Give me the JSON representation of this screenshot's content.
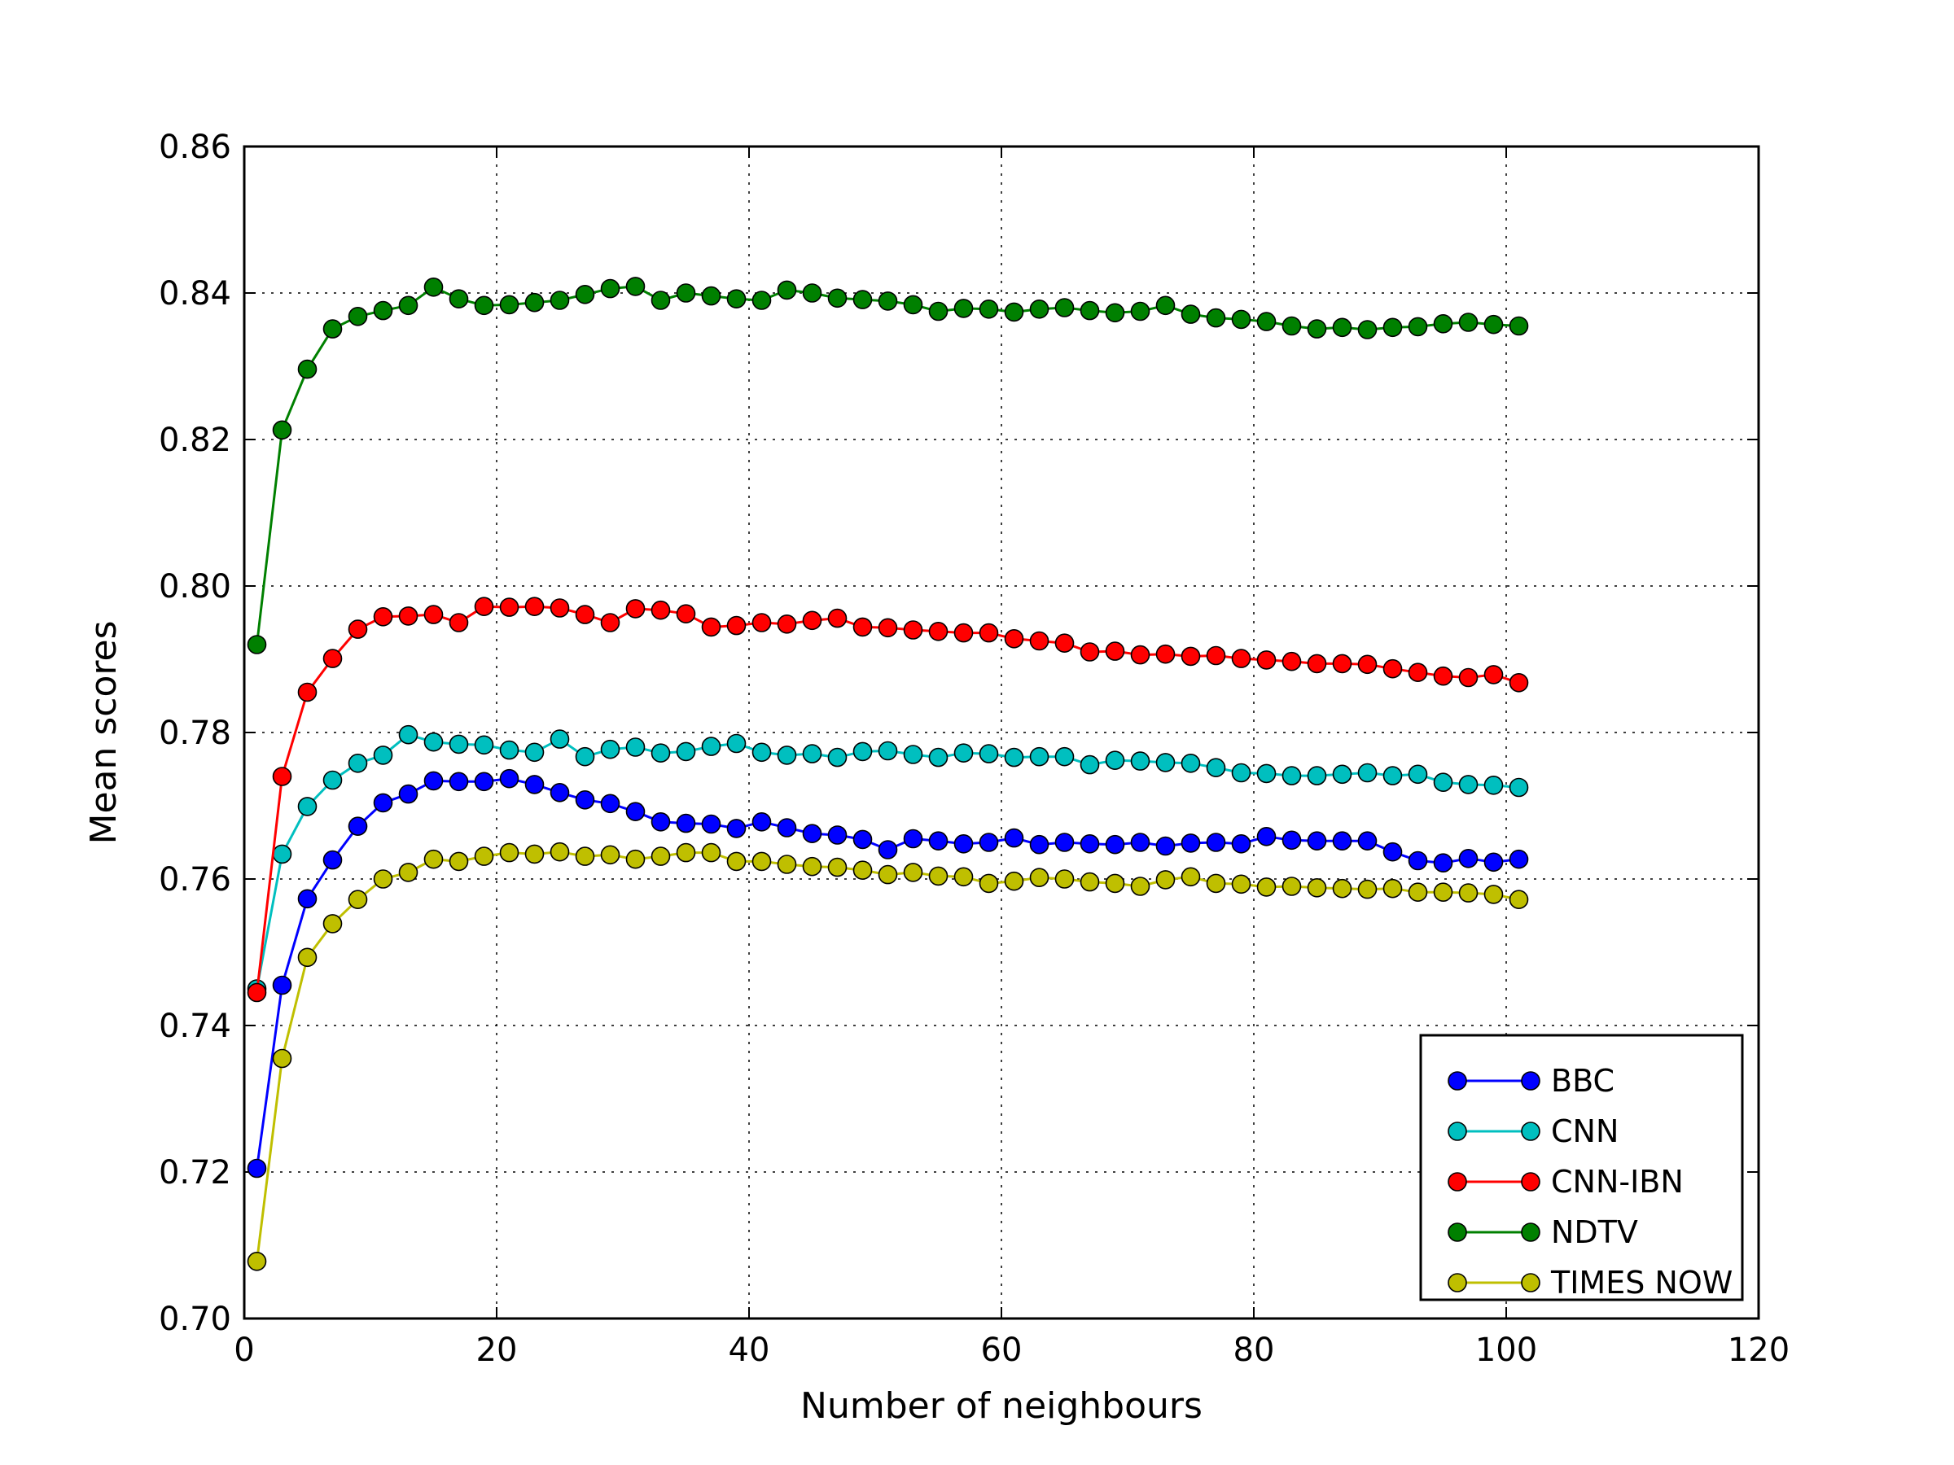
{
  "chart_data": {
    "type": "line",
    "title": "",
    "xlabel": "Number of neighbours",
    "ylabel": "Mean scores",
    "xlim": [
      0,
      120
    ],
    "ylim": [
      0.7,
      0.86
    ],
    "xticks": [
      0,
      20,
      40,
      60,
      80,
      100,
      120
    ],
    "yticks": [
      0.7,
      0.72,
      0.74,
      0.76,
      0.78,
      0.8,
      0.82,
      0.84,
      0.86
    ],
    "xtick_labels": [
      "0",
      "20",
      "40",
      "60",
      "80",
      "100",
      "120"
    ],
    "ytick_labels": [
      "0.70",
      "0.72",
      "0.74",
      "0.76",
      "0.78",
      "0.80",
      "0.82",
      "0.84",
      "0.86"
    ],
    "grid": true,
    "legend_position": "lower-right",
    "x": [
      1,
      3,
      5,
      7,
      9,
      11,
      13,
      15,
      17,
      19,
      21,
      23,
      25,
      27,
      29,
      31,
      33,
      35,
      37,
      39,
      41,
      43,
      45,
      47,
      49,
      51,
      53,
      55,
      57,
      59,
      61,
      63,
      65,
      67,
      69,
      71,
      73,
      75,
      77,
      79,
      81,
      83,
      85,
      87,
      89,
      91,
      93,
      95,
      97,
      99,
      101
    ],
    "series": [
      {
        "name": "BBC",
        "color": "#0000ff",
        "values": [
          0.7205,
          0.7455,
          0.7573,
          0.7626,
          0.7672,
          0.7704,
          0.7716,
          0.7734,
          0.7733,
          0.7733,
          0.7737,
          0.7729,
          0.7718,
          0.7708,
          0.7703,
          0.7692,
          0.7678,
          0.7676,
          0.7675,
          0.7669,
          0.7678,
          0.767,
          0.7662,
          0.766,
          0.7654,
          0.764,
          0.7655,
          0.7652,
          0.7648,
          0.765,
          0.7656,
          0.7647,
          0.765,
          0.7648,
          0.7647,
          0.765,
          0.7645,
          0.7649,
          0.765,
          0.7648,
          0.7658,
          0.7653,
          0.7652,
          0.7652,
          0.7652,
          0.7637,
          0.7625,
          0.7622,
          0.7628,
          0.7623,
          0.7627
        ]
      },
      {
        "name": "CNN",
        "color": "#00bfbf",
        "values": [
          0.745,
          0.7634,
          0.7699,
          0.7735,
          0.7758,
          0.7769,
          0.7797,
          0.7787,
          0.7784,
          0.7783,
          0.7776,
          0.7773,
          0.7791,
          0.7767,
          0.7777,
          0.778,
          0.7772,
          0.7774,
          0.7781,
          0.7785,
          0.7773,
          0.7769,
          0.7771,
          0.7766,
          0.7774,
          0.7775,
          0.777,
          0.7766,
          0.7772,
          0.7771,
          0.7766,
          0.7767,
          0.7767,
          0.7756,
          0.7762,
          0.7761,
          0.7759,
          0.7758,
          0.7752,
          0.7745,
          0.7744,
          0.7741,
          0.7741,
          0.7743,
          0.7745,
          0.7741,
          0.7743,
          0.7732,
          0.7729,
          0.7728,
          0.7725
        ]
      },
      {
        "name": "CNN-IBN",
        "color": "#ff0000",
        "values": [
          0.7445,
          0.774,
          0.7855,
          0.7901,
          0.7941,
          0.7958,
          0.7959,
          0.7961,
          0.795,
          0.7972,
          0.7971,
          0.7972,
          0.797,
          0.7961,
          0.795,
          0.7969,
          0.7967,
          0.7962,
          0.7944,
          0.7946,
          0.795,
          0.7948,
          0.7953,
          0.7956,
          0.7944,
          0.7943,
          0.794,
          0.7938,
          0.7936,
          0.7936,
          0.7928,
          0.7925,
          0.7922,
          0.791,
          0.7911,
          0.7906,
          0.7907,
          0.7904,
          0.7905,
          0.7901,
          0.7899,
          0.7897,
          0.7894,
          0.7894,
          0.7893,
          0.7887,
          0.7882,
          0.7877,
          0.7875,
          0.7879,
          0.7868
        ]
      },
      {
        "name": "NDTV",
        "color": "#008000",
        "values": [
          0.792,
          0.8213,
          0.8296,
          0.8351,
          0.8368,
          0.8376,
          0.8383,
          0.8408,
          0.8392,
          0.8383,
          0.8384,
          0.8387,
          0.839,
          0.8398,
          0.8406,
          0.8409,
          0.839,
          0.84,
          0.8396,
          0.8392,
          0.839,
          0.8404,
          0.84,
          0.8393,
          0.8391,
          0.8389,
          0.8384,
          0.8375,
          0.8379,
          0.8378,
          0.8374,
          0.8378,
          0.838,
          0.8376,
          0.8373,
          0.8375,
          0.8383,
          0.8371,
          0.8366,
          0.8364,
          0.8361,
          0.8355,
          0.8351,
          0.8353,
          0.835,
          0.8353,
          0.8354,
          0.8358,
          0.836,
          0.8357,
          0.8355
        ]
      },
      {
        "name": "TIMES NOW",
        "color": "#bfbf00",
        "values": [
          0.7078,
          0.7355,
          0.7493,
          0.7539,
          0.7572,
          0.76,
          0.7609,
          0.7627,
          0.7624,
          0.7631,
          0.7636,
          0.7634,
          0.7637,
          0.7631,
          0.7633,
          0.7627,
          0.7631,
          0.7636,
          0.7636,
          0.7624,
          0.7624,
          0.762,
          0.7617,
          0.7616,
          0.7612,
          0.7606,
          0.7609,
          0.7604,
          0.7603,
          0.7594,
          0.7597,
          0.7602,
          0.76,
          0.7596,
          0.7594,
          0.759,
          0.7599,
          0.7603,
          0.7594,
          0.7593,
          0.7589,
          0.759,
          0.7588,
          0.7587,
          0.7586,
          0.7587,
          0.7582,
          0.7582,
          0.7581,
          0.7579,
          0.7572
        ]
      }
    ]
  }
}
